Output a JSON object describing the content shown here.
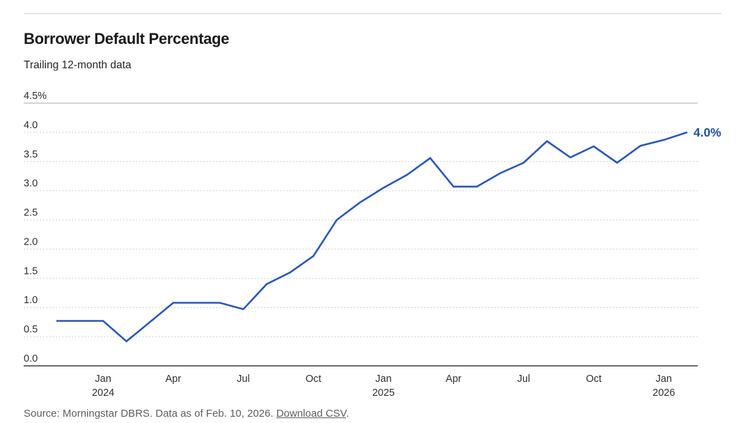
{
  "header": {
    "title": "Borrower Default Percentage",
    "subtitle": "Trailing 12-month data"
  },
  "footer": {
    "source_text": "Source: Morningstar DBRS. Data as of Feb. 10, 2026. ",
    "download_link": "Download CSV",
    "suffix": "."
  },
  "chart_data": {
    "type": "line",
    "title": "Borrower Default Percentage",
    "subtitle": "Trailing 12-month data",
    "unit": "%",
    "x": [
      "Nov 2023",
      "Dec 2023",
      "Jan 2024",
      "Feb 2024",
      "Mar 2024",
      "Apr 2024",
      "May 2024",
      "Jun 2024",
      "Jul 2024",
      "Aug 2024",
      "Sep 2024",
      "Oct 2024",
      "Nov 2024",
      "Dec 2024",
      "Jan 2025",
      "Feb 2025",
      "Mar 2025",
      "Apr 2025",
      "May 2025",
      "Jun 2025",
      "Jul 2025",
      "Aug 2025",
      "Sep 2025",
      "Oct 2025",
      "Nov 2025",
      "Dec 2025",
      "Jan 2026",
      "Feb 2026"
    ],
    "values": [
      0.77,
      0.77,
      0.77,
      0.42,
      0.75,
      1.08,
      1.08,
      1.08,
      0.97,
      1.4,
      1.6,
      1.88,
      2.5,
      2.8,
      3.05,
      3.27,
      3.56,
      3.07,
      3.07,
      3.3,
      3.48,
      3.85,
      3.57,
      3.76,
      3.48,
      3.77,
      3.87,
      4.0
    ],
    "ylim": [
      0,
      4.5
    ],
    "ytick_step": 0.5,
    "ytick_labels": [
      "0.0",
      "0.5",
      "1.0",
      "1.5",
      "2.0",
      "2.5",
      "3.0",
      "3.5",
      "4.0",
      "4.5%"
    ],
    "xticks": [
      {
        "index": 2,
        "label": "Jan",
        "year": "2024"
      },
      {
        "index": 5,
        "label": "Apr"
      },
      {
        "index": 8,
        "label": "Jul"
      },
      {
        "index": 11,
        "label": "Oct"
      },
      {
        "index": 14,
        "label": "Jan",
        "year": "2025"
      },
      {
        "index": 17,
        "label": "Apr"
      },
      {
        "index": 20,
        "label": "Jul"
      },
      {
        "index": 23,
        "label": "Oct"
      },
      {
        "index": 26,
        "label": "Jan",
        "year": "2026"
      }
    ],
    "end_label": "4.0%",
    "line_color": "#2a57b8",
    "end_label_color": "#1f4fa8",
    "grid": "horizontal-dashed",
    "legend": "none"
  }
}
